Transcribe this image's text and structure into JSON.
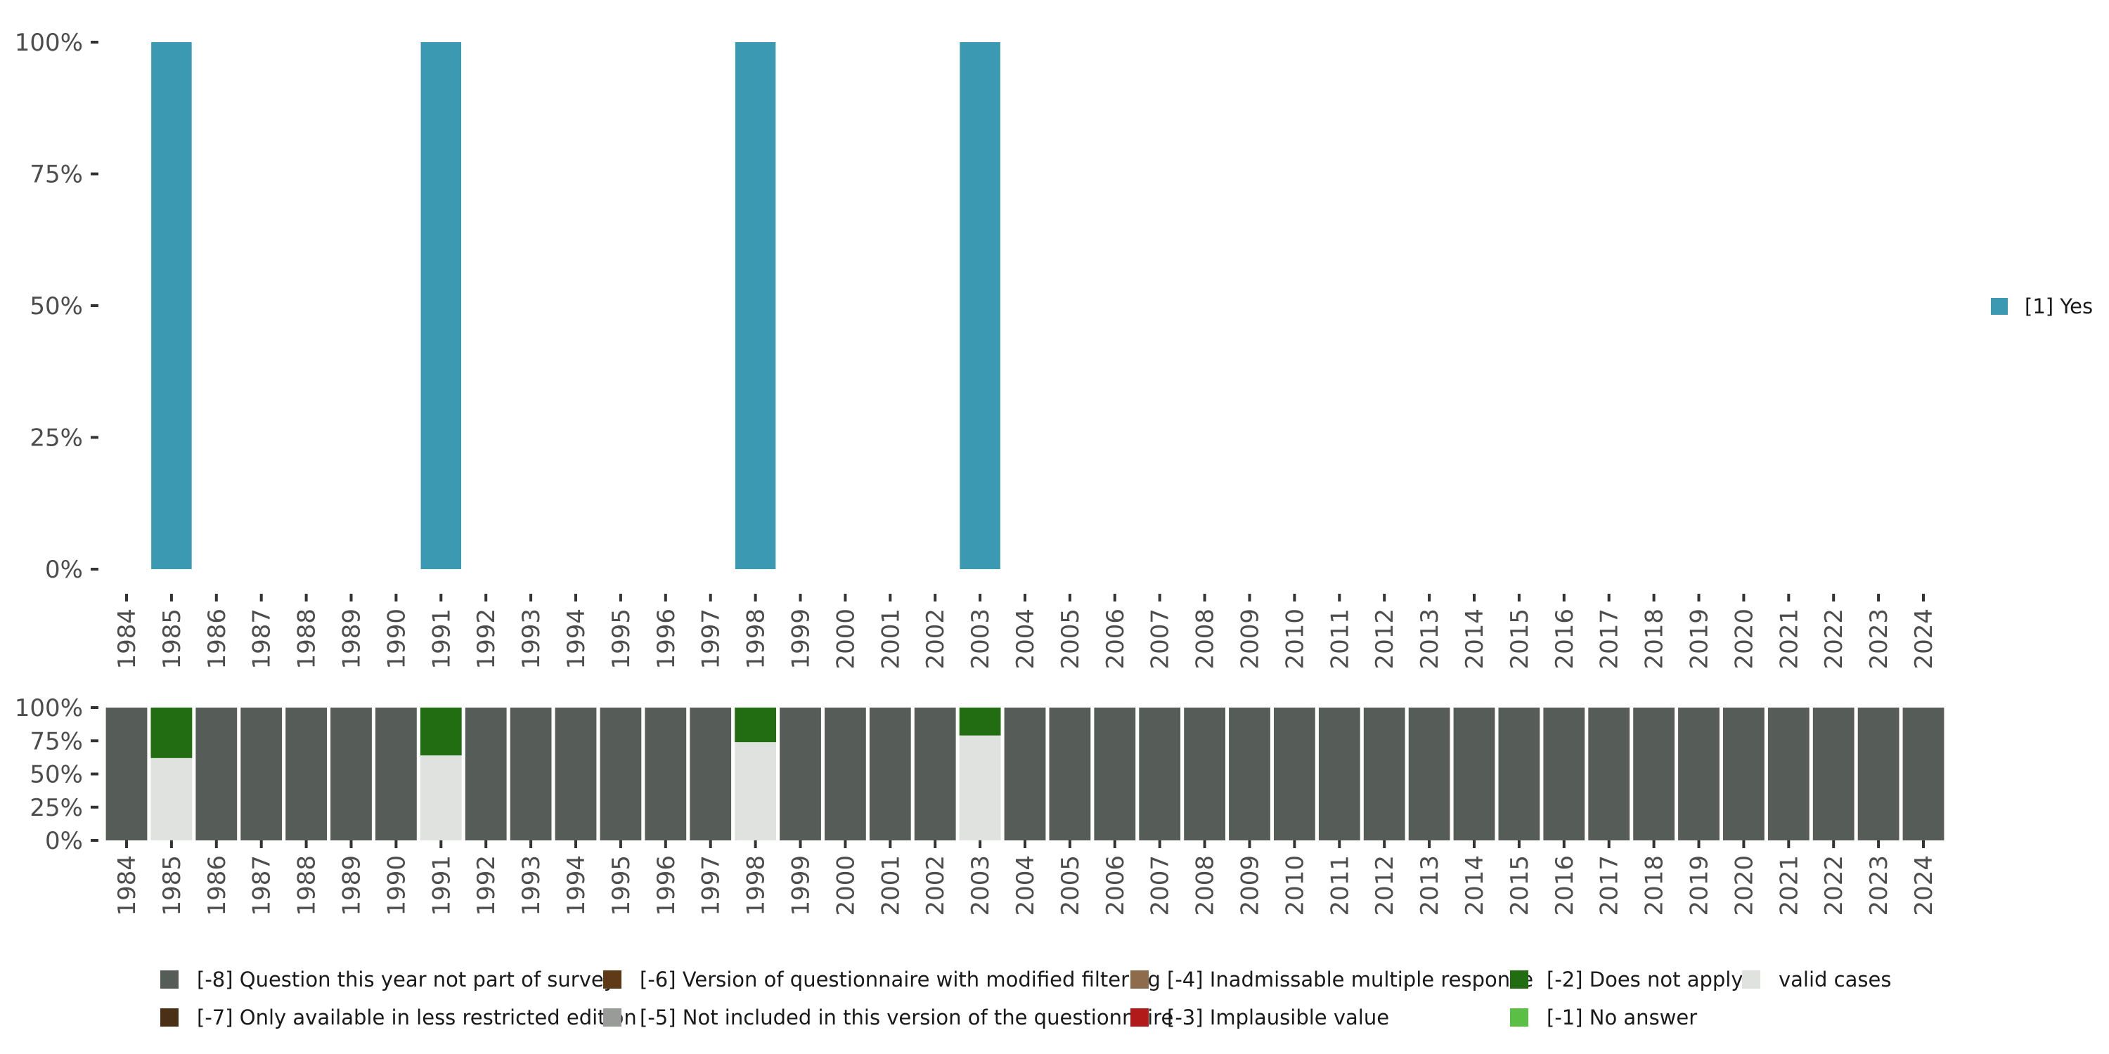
{
  "chart_data": [
    {
      "type": "bar",
      "stacked": true,
      "categories": [
        "1984",
        "1985",
        "1986",
        "1987",
        "1988",
        "1989",
        "1990",
        "1991",
        "1992",
        "1993",
        "1994",
        "1995",
        "1996",
        "1997",
        "1998",
        "1999",
        "2000",
        "2001",
        "2002",
        "2003",
        "2004",
        "2005",
        "2006",
        "2007",
        "2008",
        "2009",
        "2010",
        "2011",
        "2012",
        "2013",
        "2014",
        "2015",
        "2016",
        "2017",
        "2018",
        "2019",
        "2020",
        "2021",
        "2022",
        "2023",
        "2024"
      ],
      "ylim": [
        0,
        1
      ],
      "yticks": [
        0,
        0.25,
        0.5,
        0.75,
        1
      ],
      "ytick_labels": [
        "0%",
        "25%",
        "50%",
        "75%",
        "100%"
      ],
      "grid": false,
      "legend_position": "right",
      "series": [
        {
          "name": "[1] Yes",
          "color": "#3B9AB2",
          "values": [
            null,
            1,
            null,
            null,
            null,
            null,
            null,
            1,
            null,
            null,
            null,
            null,
            null,
            null,
            1,
            null,
            null,
            null,
            null,
            1,
            null,
            null,
            null,
            null,
            null,
            null,
            null,
            null,
            null,
            null,
            null,
            null,
            null,
            null,
            null,
            null,
            null,
            null,
            null,
            null,
            null
          ]
        }
      ]
    },
    {
      "type": "bar",
      "stacked": true,
      "categories": [
        "1984",
        "1985",
        "1986",
        "1987",
        "1988",
        "1989",
        "1990",
        "1991",
        "1992",
        "1993",
        "1994",
        "1995",
        "1996",
        "1997",
        "1998",
        "1999",
        "2000",
        "2001",
        "2002",
        "2003",
        "2004",
        "2005",
        "2006",
        "2007",
        "2008",
        "2009",
        "2010",
        "2011",
        "2012",
        "2013",
        "2014",
        "2015",
        "2016",
        "2017",
        "2018",
        "2019",
        "2020",
        "2021",
        "2022",
        "2023",
        "2024"
      ],
      "ylim": [
        0,
        1
      ],
      "yticks": [
        0,
        0.25,
        0.5,
        0.75,
        1
      ],
      "ytick_labels": [
        "0%",
        "25%",
        "50%",
        "75%",
        "100%"
      ],
      "grid": false,
      "legend_position": "bottom",
      "series": [
        {
          "name": "valid cases",
          "color": "#E0E2DF",
          "values": [
            0,
            0.62,
            0,
            0,
            0,
            0,
            0,
            0.64,
            0,
            0,
            0,
            0,
            0,
            0,
            0.74,
            0,
            0,
            0,
            0,
            0.79,
            0,
            0,
            0,
            0,
            0,
            0,
            0,
            0,
            0,
            0,
            0,
            0,
            0,
            0,
            0,
            0,
            0,
            0,
            0,
            0,
            0
          ]
        },
        {
          "name": "[-2] Does not apply",
          "color": "#226D11",
          "values": [
            0,
            0.38,
            0,
            0,
            0,
            0,
            0,
            0.36,
            0,
            0,
            0,
            0,
            0,
            0,
            0.26,
            0,
            0,
            0,
            0,
            0.21,
            0,
            0,
            0,
            0,
            0,
            0,
            0,
            0,
            0,
            0,
            0,
            0,
            0,
            0,
            0,
            0,
            0,
            0,
            0,
            0,
            0
          ]
        },
        {
          "name": "[-8] Question this year not part of survey",
          "color": "#565C57",
          "values": [
            1,
            0,
            1,
            1,
            1,
            1,
            1,
            0,
            1,
            1,
            1,
            1,
            1,
            1,
            0,
            1,
            1,
            1,
            1,
            0,
            1,
            1,
            1,
            1,
            1,
            1,
            1,
            1,
            1,
            1,
            1,
            1,
            1,
            1,
            1,
            1,
            1,
            1,
            1,
            1,
            1
          ]
        }
      ],
      "legend": [
        {
          "name": "[-8] Question this year not part of survey",
          "color": "#565C57"
        },
        {
          "name": "[-7] Only available in less restricted edition",
          "color": "#4A3116"
        },
        {
          "name": "[-6] Version of questionnaire with modified filtering",
          "color": "#5E3A17"
        },
        {
          "name": "[-5] Not included in this version of the questionnaire",
          "color": "#999B98"
        },
        {
          "name": "[-4] Inadmissable multiple response",
          "color": "#8E6B4A"
        },
        {
          "name": "[-3] Implausible value",
          "color": "#B21A1A"
        },
        {
          "name": "[-2] Does not apply",
          "color": "#226D11"
        },
        {
          "name": "[-1] No answer",
          "color": "#5BBF45"
        },
        {
          "name": "valid cases",
          "color": "#E0E2DF"
        }
      ]
    }
  ]
}
